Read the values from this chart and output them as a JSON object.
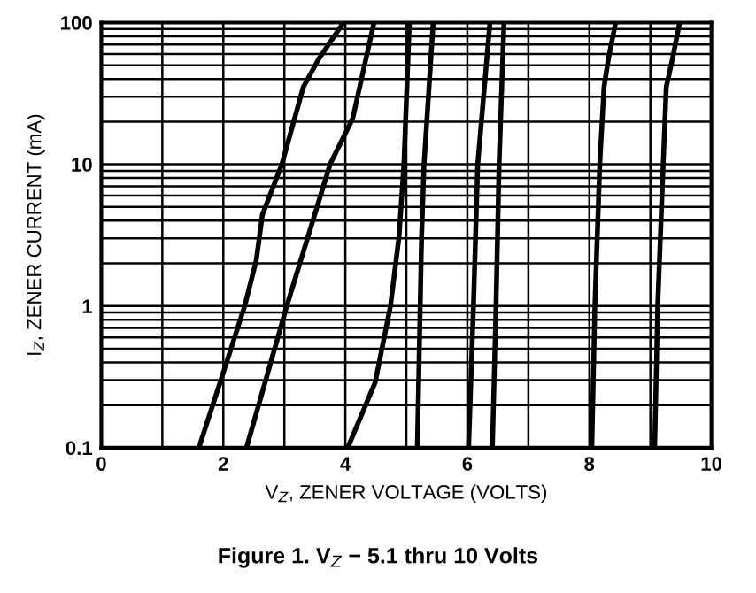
{
  "chart_data": {
    "type": "line",
    "title": "Figure 1. V$_{Z}$ − 5.1 thru 10 Volts",
    "xlabel": "V$_{Z}$, ZENER VOLTAGE (VOLTS)",
    "ylabel": "I$_{Z}$, ZENER CURRENT (mA)",
    "log": "y",
    "xlim": [
      0,
      10
    ],
    "xticks": [
      0,
      {
        "value": 1,
        "label": null
      },
      2,
      {
        "value": 3,
        "label": null
      },
      4,
      {
        "value": 5,
        "label": null
      },
      6,
      {
        "value": 7,
        "label": null
      },
      8,
      {
        "value": 9,
        "label": null
      },
      10
    ],
    "ylim": [
      0.1,
      100
    ],
    "yticks": [
      0.1,
      {
        "value": 0.2,
        "label": null
      },
      {
        "value": 0.3,
        "label": null
      },
      {
        "value": 0.4,
        "label": null
      },
      {
        "value": 0.5,
        "label": null
      },
      {
        "value": 0.6,
        "label": null
      },
      {
        "value": 0.7,
        "label": null
      },
      {
        "value": 0.8,
        "label": null
      },
      {
        "value": 0.9,
        "label": null
      },
      1,
      {
        "value": 2,
        "label": null
      },
      {
        "value": 3,
        "label": null
      },
      {
        "value": 4,
        "label": null
      },
      {
        "value": 5,
        "label": null
      },
      {
        "value": 6,
        "label": null
      },
      {
        "value": 7,
        "label": null
      },
      {
        "value": 8,
        "label": null
      },
      {
        "value": 9,
        "label": null
      },
      10,
      {
        "value": 20,
        "label": null
      },
      {
        "value": 30,
        "label": null
      },
      {
        "value": 40,
        "label": null
      },
      {
        "value": 50,
        "label": null
      },
      {
        "value": 60,
        "label": null
      },
      {
        "value": 70,
        "label": null
      },
      {
        "value": 80,
        "label": null
      },
      {
        "value": 90,
        "label": null
      },
      100
    ],
    "grid": true,
    "legend": false,
    "line_style": "solid",
    "marker": "none",
    "series": [
      {
        "color": "#000000",
        "x": [
          1.6,
          1.96,
          2.35,
          2.54,
          2.64,
          2.96,
          3.31,
          3.56,
          3.97
        ],
        "values": [
          0.1,
          0.3,
          1,
          2.1,
          4.4,
          10,
          35,
          55,
          100
        ]
      },
      {
        "color": "#000000",
        "x": [
          2.38,
          3.04,
          3.75,
          4.12,
          4.47
        ],
        "values": [
          0.1,
          1,
          10,
          21,
          100
        ]
      },
      {
        "color": "#000000",
        "x": [
          4.04,
          4.49,
          4.74,
          4.88,
          4.96,
          5.05
        ],
        "values": [
          0.1,
          0.29,
          1,
          3.1,
          10,
          100
        ]
      },
      {
        "color": "#000000",
        "x": [
          5.18,
          5.25,
          5.29,
          5.44
        ],
        "values": [
          0.1,
          3.1,
          10,
          100
        ]
      },
      {
        "color": "#000000",
        "x": [
          6.02,
          6.1,
          6.17,
          6.37
        ],
        "values": [
          0.1,
          1,
          10,
          100
        ]
      },
      {
        "color": "#000000",
        "x": [
          6.41,
          6.47,
          6.52,
          6.6
        ],
        "values": [
          0.1,
          1,
          10,
          100
        ]
      },
      {
        "color": "#000000",
        "x": [
          8.04,
          8.09,
          8.17,
          8.24,
          8.31,
          8.43
        ],
        "values": [
          0.1,
          1,
          10,
          35,
          55,
          100
        ]
      },
      {
        "color": "#000000",
        "x": [
          9.07,
          9.12,
          9.21,
          9.26,
          9.36,
          9.48
        ],
        "values": [
          0.1,
          1,
          10,
          35,
          55,
          100
        ]
      }
    ]
  }
}
